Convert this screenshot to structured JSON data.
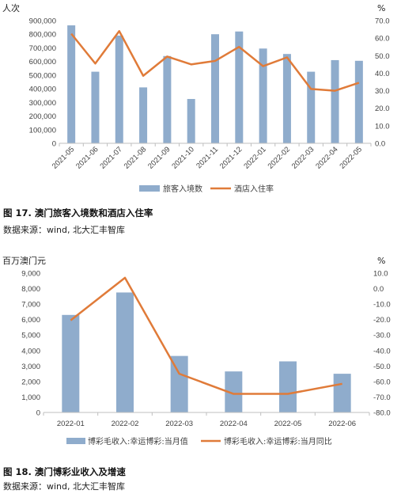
{
  "figures": [
    {
      "left_unit": "人次",
      "right_unit": "%",
      "caption_title": "图 17. 澳门旅客入境数和酒店入住率",
      "caption_source": "数据来源：wind, 北大汇丰智库",
      "left_ticks": [
        "0",
        "100,000",
        "200,000",
        "300,000",
        "400,000",
        "500,000",
        "600,000",
        "700,000",
        "800,000",
        "900,000"
      ],
      "right_ticks": [
        "0.0",
        "10.0",
        "20.0",
        "30.0",
        "40.0",
        "50.0",
        "60.0",
        "70.0"
      ],
      "legend": [
        "旅客入境数",
        "酒店入住率"
      ]
    },
    {
      "left_unit": "百万澳门元",
      "right_unit": "%",
      "caption_title": "图 18. 澳门博彩业收入及增速",
      "caption_source": "数据来源：wind, 北大汇丰智库",
      "left_ticks": [
        "0",
        "1,000",
        "2,000",
        "3,000",
        "4,000",
        "5,000",
        "6,000",
        "7,000",
        "8,000",
        "9,000"
      ],
      "right_ticks": [
        "10.0",
        "0.0",
        "-10.0",
        "-20.0",
        "-30.0",
        "-40.0",
        "-50.0",
        "-60.0",
        "-70.0",
        "-80.0"
      ],
      "legend": [
        "博彩毛收入:幸运博彩:当月值",
        "博彩毛收入:幸运博彩:当月同比"
      ]
    }
  ],
  "chart_data": [
    {
      "type": "bar+line",
      "categories": [
        "2021-05",
        "2021-06",
        "2021-07",
        "2021-08",
        "2021-09",
        "2021-10",
        "2021-11",
        "2021-12",
        "2022-01",
        "2022-02",
        "2022-03",
        "2022-04",
        "2022-05"
      ],
      "series": [
        {
          "name": "旅客入境数",
          "type": "bar",
          "axis": "left",
          "color": "#8faccc",
          "values": [
            865000,
            525000,
            790000,
            410000,
            640000,
            325000,
            800000,
            820000,
            695000,
            655000,
            525000,
            610000,
            605000
          ]
        },
        {
          "name": "酒店入住率",
          "type": "line",
          "axis": "right",
          "color": "#e07b39",
          "values": [
            62.5,
            45.5,
            64.0,
            38.5,
            49.5,
            45.0,
            47.0,
            55.0,
            44.0,
            49.0,
            31.0,
            30.0,
            34.5
          ]
        }
      ],
      "ylim_left": [
        0,
        900000
      ],
      "ylim_right": [
        0,
        70
      ],
      "grid": false,
      "legend_position": "bottom"
    },
    {
      "type": "bar+line",
      "categories": [
        "2022-01",
        "2022-02",
        "2022-03",
        "2022-04",
        "2022-05",
        "2022-06"
      ],
      "series": [
        {
          "name": "博彩毛收入:幸运博彩:当月值",
          "type": "bar",
          "axis": "left",
          "color": "#8faccc",
          "values": [
            6300,
            7750,
            3650,
            2650,
            3300,
            2500
          ]
        },
        {
          "name": "博彩毛收入:幸运博彩:当月同比",
          "type": "line",
          "axis": "right",
          "color": "#e07b39",
          "values": [
            -20.5,
            7.0,
            -55.0,
            -68.0,
            -68.0,
            -61.5
          ]
        }
      ],
      "ylim_left": [
        0,
        9000
      ],
      "ylim_right": [
        -80,
        10
      ],
      "grid": false,
      "legend_position": "bottom"
    }
  ]
}
